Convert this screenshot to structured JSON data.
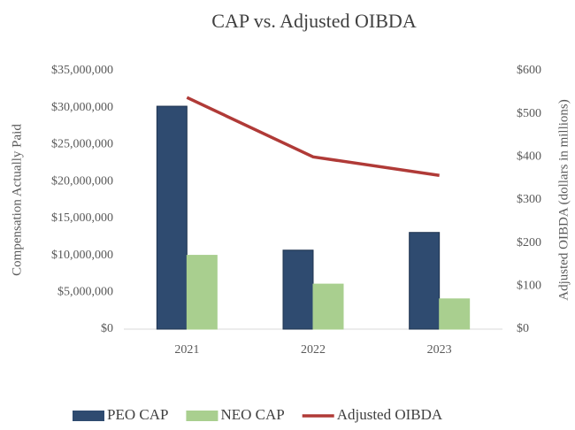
{
  "chart_data": {
    "type": "bar-line",
    "title": "CAP vs. Adjusted OIBDA",
    "categories": [
      "2021",
      "2022",
      "2023"
    ],
    "series": [
      {
        "name": "PEO CAP",
        "color": "#2f4b70",
        "type": "bar",
        "values": [
          30200000,
          10700000,
          13100000
        ]
      },
      {
        "name": "NEO CAP",
        "color": "#a9cf8f",
        "type": "bar",
        "values": [
          10000000,
          6100000,
          4100000
        ]
      },
      {
        "name": "Adjusted OIBDA",
        "color": "#b03a37",
        "type": "line",
        "axis": "y2",
        "values": [
          538,
          400,
          357
        ]
      }
    ],
    "ylabel": "Compensation Actually Paid",
    "y2label": "Adjusted OIBDA (dollars in millions)",
    "ylim": [
      0,
      35000000
    ],
    "yticks": [
      {
        "value": 0,
        "label": "$0"
      },
      {
        "value": 5000000,
        "label": "$5,000,000"
      },
      {
        "value": 10000000,
        "label": "$10,000,000"
      },
      {
        "value": 15000000,
        "label": "$15,000,000"
      },
      {
        "value": 20000000,
        "label": "$20,000,000"
      },
      {
        "value": 25000000,
        "label": "$25,000,000"
      },
      {
        "value": 30000000,
        "label": "$30,000,000"
      },
      {
        "value": 35000000,
        "label": "$35,000,000"
      }
    ],
    "y2lim": [
      0,
      600
    ],
    "y2ticks": [
      {
        "value": 0,
        "label": "$0"
      },
      {
        "value": 100,
        "label": "$100"
      },
      {
        "value": 200,
        "label": "$200"
      },
      {
        "value": 300,
        "label": "$300"
      },
      {
        "value": 400,
        "label": "$400"
      },
      {
        "value": 500,
        "label": "$500"
      },
      {
        "value": 600,
        "label": "$600"
      }
    ],
    "legend": "bottom"
  }
}
